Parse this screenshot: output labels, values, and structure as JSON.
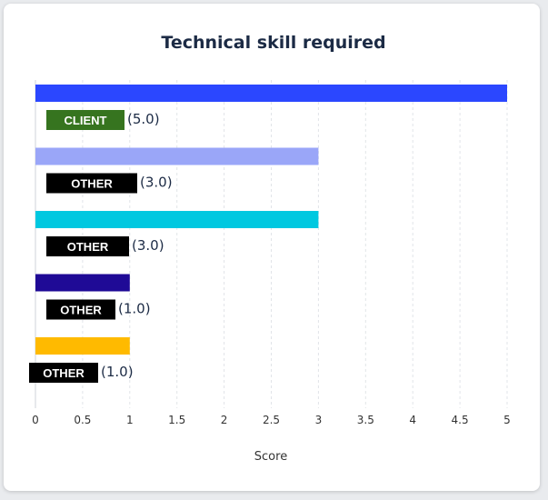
{
  "chart_data": {
    "type": "bar",
    "orientation": "horizontal",
    "title": "Technical skill required",
    "xlabel": "Score",
    "ylabel": "",
    "xlim": [
      0,
      5
    ],
    "xticks": [
      "0",
      "0.5",
      "1",
      "1.5",
      "2",
      "2.5",
      "3",
      "3.5",
      "4",
      "4.5",
      "5"
    ],
    "grid": true,
    "bars": [
      {
        "tag": "CLIENT",
        "value": 5.0,
        "value_label": "(5.0)",
        "color": "#2b47ff",
        "tag_color": "#36741f"
      },
      {
        "tag": "OTHER",
        "value": 3.0,
        "value_label": "(3.0)",
        "color": "#9aa6f8",
        "tag_color": "#000000"
      },
      {
        "tag": "OTHER",
        "value": 3.0,
        "value_label": "(3.0)",
        "color": "#00c8e0",
        "tag_color": "#000000"
      },
      {
        "tag": "OTHER",
        "value": 1.0,
        "value_label": "(1.0)",
        "color": "#1f0a96",
        "tag_color": "#000000"
      },
      {
        "tag": "OTHER",
        "value": 1.0,
        "value_label": "(1.0)",
        "color": "#ffba00",
        "tag_color": "#000000"
      }
    ]
  }
}
